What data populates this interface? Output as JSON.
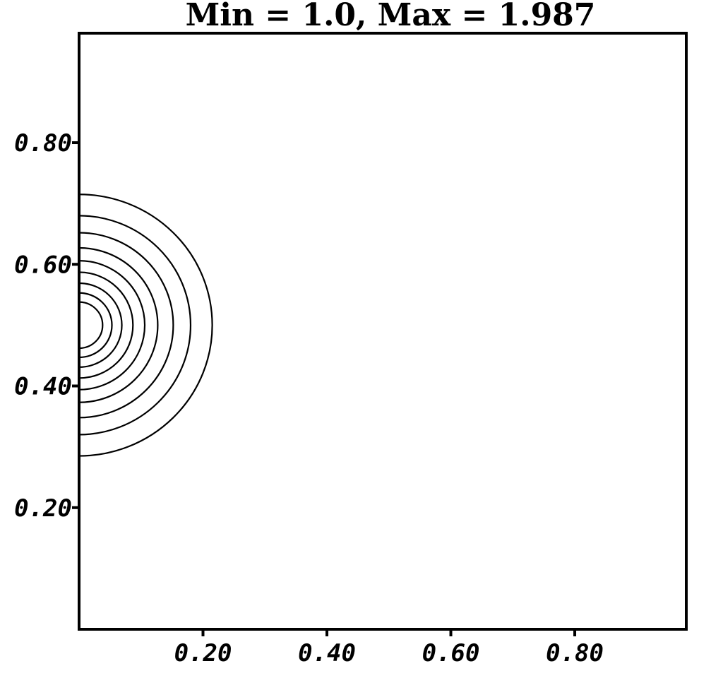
{
  "chart_data": {
    "type": "contour",
    "title": "Min = 1.0, Max = 1.987",
    "xlabel": "",
    "ylabel": "",
    "xlim": [
      0.0,
      0.98
    ],
    "ylim": [
      0.0,
      0.98
    ],
    "x_ticks": [
      0.2,
      0.4,
      0.6,
      0.8
    ],
    "y_ticks": [
      0.2,
      0.4,
      0.6,
      0.8
    ],
    "x_tick_labels": [
      "0.20",
      "0.40",
      "0.60",
      "0.80"
    ],
    "y_tick_labels": [
      "0.20",
      "0.40",
      "0.60",
      "0.80"
    ],
    "grid": false,
    "min": 1.0,
    "max": 1.987,
    "contours": {
      "center": [
        0.0,
        0.5
      ],
      "radii": [
        0.215,
        0.18,
        0.152,
        0.127,
        0.106,
        0.087,
        0.069,
        0.053,
        0.038
      ]
    }
  }
}
